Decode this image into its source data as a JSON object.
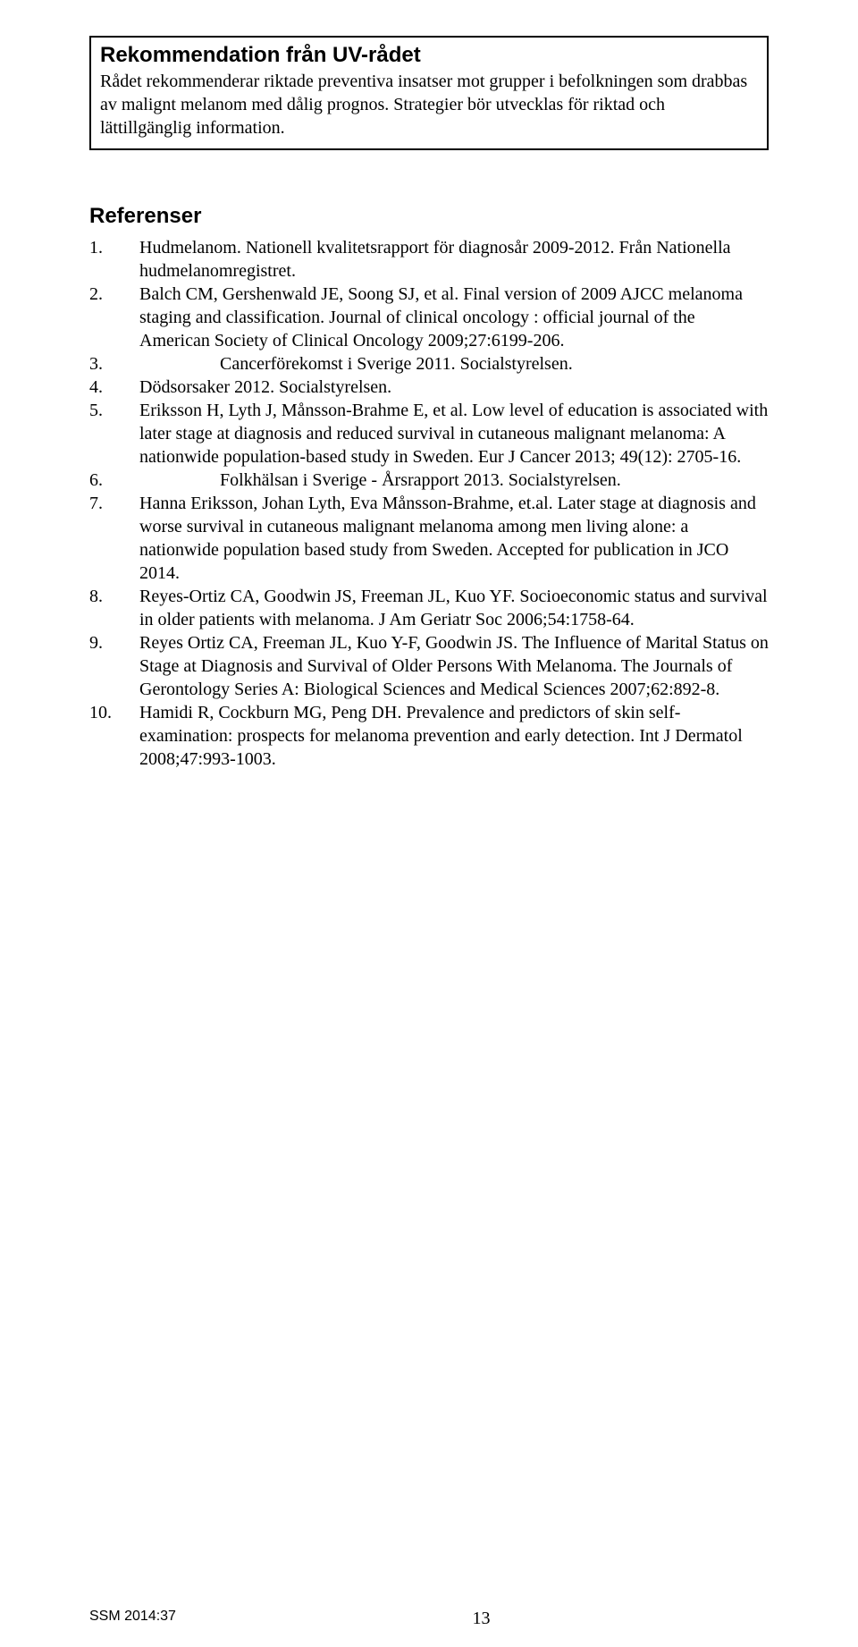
{
  "recommendation": {
    "title": "Rekommendation från UV-rådet",
    "body": "Rådet rekommenderar riktade preventiva insatser mot grupper i befolkningen som drabbas av malignt melanom med dålig prognos. Strategier bör utvecklas för riktad och lättillgänglig information."
  },
  "references": {
    "heading": "Referenser",
    "items": [
      {
        "num": "1.",
        "text": "Hudmelanom. Nationell kvalitetsrapport för diagnosår 2009-2012. Från Nationella hudmelanomregistret."
      },
      {
        "num": "2.",
        "text": "Balch CM, Gershenwald JE, Soong SJ, et al. Final version of 2009 AJCC melanoma staging and classification. Journal of clinical oncology : official journal of the American Society of Clinical Oncology 2009;27:6199-206."
      },
      {
        "num": "3.",
        "text": "Cancerförekomst i Sverige 2011. Socialstyrelsen."
      },
      {
        "num": "4.",
        "text": "Dödsorsaker 2012. Socialstyrelsen."
      },
      {
        "num": "5.",
        "text": "Eriksson H, Lyth J, Månsson-Brahme E, et al. Low level of education is associated with later stage at diagnosis and reduced survival in cutaneous malignant melanoma: A nationwide population-based study in Sweden. Eur J Cancer 2013; 49(12): 2705-16."
      },
      {
        "num": "6.",
        "text": "Folkhälsan i Sverige - Årsrapport 2013. Socialstyrelsen."
      },
      {
        "num": "7.",
        "text": "Hanna Eriksson, Johan Lyth, Eva Månsson-Brahme, et.al. Later stage at diagnosis and worse survival in cutaneous malignant melanoma among men living alone: a nationwide population based study from Sweden. Accepted for publication in JCO 2014."
      },
      {
        "num": "8.",
        "text": "Reyes-Ortiz CA, Goodwin JS, Freeman JL, Kuo YF. Socioeconomic status and survival in older patients with melanoma. J Am Geriatr Soc 2006;54:1758-64."
      },
      {
        "num": "9.",
        "text": "Reyes Ortiz CA, Freeman JL, Kuo Y-F, Goodwin JS. The Influence of Marital Status on Stage at Diagnosis and Survival of Older Persons With Melanoma. The Journals of Gerontology Series A: Biological Sciences and Medical Sciences 2007;62:892-8."
      },
      {
        "num": "10.",
        "text": "Hamidi R, Cockburn MG, Peng DH. Prevalence and predictors of skin self-examination: prospects for melanoma prevention and early detection. Int J Dermatol 2008;47:993-1003."
      }
    ]
  },
  "footer": {
    "left": "SSM 2014:37",
    "page": "13"
  }
}
